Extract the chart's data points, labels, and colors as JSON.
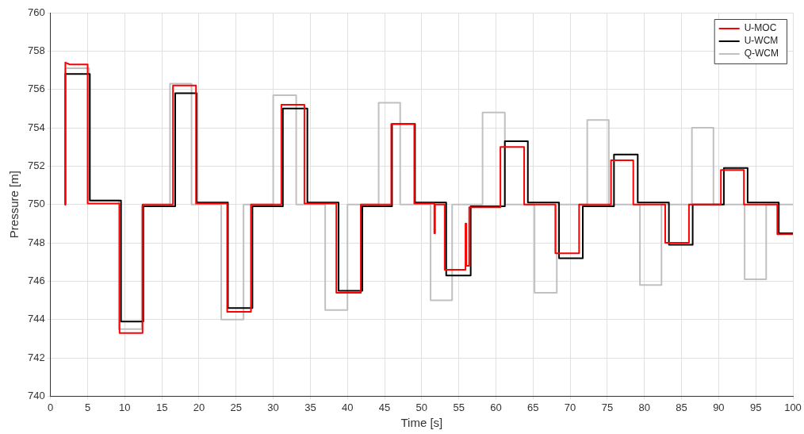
{
  "chart_data": {
    "type": "line",
    "xlabel": "Time [s]",
    "ylabel": "Pressure [m]",
    "xlim": [
      0,
      100
    ],
    "xticks": [
      0,
      5,
      10,
      15,
      20,
      25,
      30,
      35,
      40,
      45,
      50,
      55,
      60,
      65,
      70,
      75,
      80,
      85,
      90,
      95,
      100
    ],
    "ylim": [
      740,
      760
    ],
    "yticks": [
      740,
      742,
      744,
      746,
      748,
      750,
      752,
      754,
      756,
      758,
      760
    ],
    "grid": true,
    "legend": "top right",
    "marker": "none",
    "line_style": "solid",
    "series": [
      {
        "name": "U-MOC",
        "color": "#ff0000",
        "x": [
          2,
          2,
          2.6,
          5.0,
          5.0,
          9.3,
          9.3,
          12.4,
          12.4,
          16.5,
          16.5,
          19.6,
          19.6,
          23.8,
          23.8,
          27.0,
          27.0,
          31.1,
          31.1,
          34.2,
          34.2,
          38.5,
          38.5,
          41.8,
          41.8,
          45.9,
          45.9,
          49.0,
          49.0,
          51.7,
          51.7,
          51.8,
          51.8,
          53.1,
          53.1,
          55.9,
          55.9,
          56.0,
          56.0,
          56.4,
          56.4,
          60.6,
          60.6,
          63.8,
          63.8,
          68.0,
          68.0,
          71.2,
          71.2,
          75.5,
          75.5,
          78.5,
          78.5,
          82.8,
          82.8,
          86.0,
          86.0,
          90.3,
          90.3,
          93.4,
          93.4,
          97.9,
          97.9,
          100
        ],
        "values": [
          750,
          757.4,
          757.3,
          757.3,
          750.05,
          750.05,
          743.3,
          743.3,
          750.0,
          750.0,
          756.2,
          756.2,
          750.05,
          750.05,
          744.4,
          744.4,
          750.0,
          750.0,
          755.2,
          755.2,
          750.05,
          750.05,
          745.4,
          745.4,
          750.0,
          750.0,
          754.2,
          754.2,
          750.05,
          750.05,
          748.5,
          748.5,
          750.0,
          750.0,
          746.6,
          746.6,
          749.0,
          749.0,
          746.8,
          746.8,
          749.85,
          749.85,
          753.0,
          753.0,
          750.0,
          750.0,
          747.45,
          747.45,
          750.0,
          750.0,
          752.3,
          752.3,
          750.0,
          750.0,
          748.0,
          748.0,
          750.0,
          750.0,
          751.8,
          751.8,
          750.0,
          750.0,
          748.45,
          748.45
        ]
      },
      {
        "name": "U-WCM",
        "color": "#000000",
        "x": [
          2,
          2,
          5.3,
          5.3,
          9.5,
          9.5,
          12.5,
          12.5,
          16.8,
          16.8,
          19.7,
          19.7,
          23.9,
          23.9,
          27.2,
          27.2,
          31.3,
          31.3,
          34.6,
          34.6,
          38.8,
          38.8,
          42.0,
          42.0,
          46.0,
          46.0,
          49.1,
          49.1,
          53.3,
          53.3,
          56.6,
          56.6,
          61.2,
          61.2,
          64.3,
          64.3,
          68.5,
          68.5,
          71.7,
          71.7,
          75.9,
          75.9,
          79.1,
          79.1,
          83.3,
          83.3,
          86.5,
          86.5,
          90.7,
          90.7,
          93.9,
          93.9,
          98.1,
          98.1,
          100
        ],
        "values": [
          750,
          756.8,
          756.8,
          750.2,
          750.2,
          743.9,
          743.9,
          749.9,
          749.9,
          755.8,
          755.8,
          750.1,
          750.1,
          744.6,
          744.6,
          749.9,
          749.9,
          755.0,
          755.0,
          750.1,
          750.1,
          745.5,
          745.5,
          749.9,
          749.9,
          754.2,
          754.2,
          750.1,
          750.1,
          746.3,
          746.3,
          749.9,
          749.9,
          753.3,
          753.3,
          750.1,
          750.1,
          747.2,
          747.2,
          749.9,
          749.9,
          752.6,
          752.6,
          750.1,
          750.1,
          747.9,
          747.9,
          750.0,
          750.0,
          751.9,
          751.9,
          750.1,
          750.1,
          748.5,
          748.5
        ]
      },
      {
        "name": "Q-WCM",
        "color": "#c0c0c0",
        "x": [
          2,
          2,
          5.2,
          5.2,
          9.2,
          9.2,
          12.3,
          12.3,
          16.1,
          16.1,
          19.0,
          19.0,
          23.0,
          23.0,
          26.0,
          26.0,
          30.0,
          30.0,
          33.1,
          33.1,
          37.0,
          37.0,
          40.0,
          40.0,
          44.2,
          44.2,
          47.1,
          47.1,
          51.2,
          51.2,
          54.1,
          54.1,
          58.2,
          58.2,
          61.2,
          61.2,
          65.2,
          65.2,
          68.2,
          68.2,
          72.3,
          72.3,
          75.2,
          75.2,
          79.4,
          79.4,
          82.3,
          82.3,
          86.4,
          86.4,
          89.3,
          89.3,
          93.5,
          93.5,
          96.4,
          96.4,
          100
        ],
        "values": [
          750,
          757.1,
          757.1,
          750.2,
          750.2,
          743.5,
          743.5,
          749.9,
          749.9,
          756.3,
          756.3,
          750.0,
          750.0,
          744.0,
          744.0,
          750.0,
          750.0,
          755.7,
          755.7,
          750.0,
          750.0,
          744.5,
          744.5,
          750.0,
          750.0,
          755.3,
          755.3,
          750.0,
          750.0,
          745.0,
          745.0,
          750.0,
          750.0,
          754.8,
          754.8,
          750.0,
          750.0,
          745.4,
          745.4,
          750.0,
          750.0,
          754.4,
          754.4,
          750.0,
          750.0,
          745.8,
          745.8,
          750.0,
          750.0,
          754.0,
          754.0,
          750.0,
          750.0,
          746.1,
          746.1,
          750.0,
          750.0
        ]
      }
    ]
  }
}
